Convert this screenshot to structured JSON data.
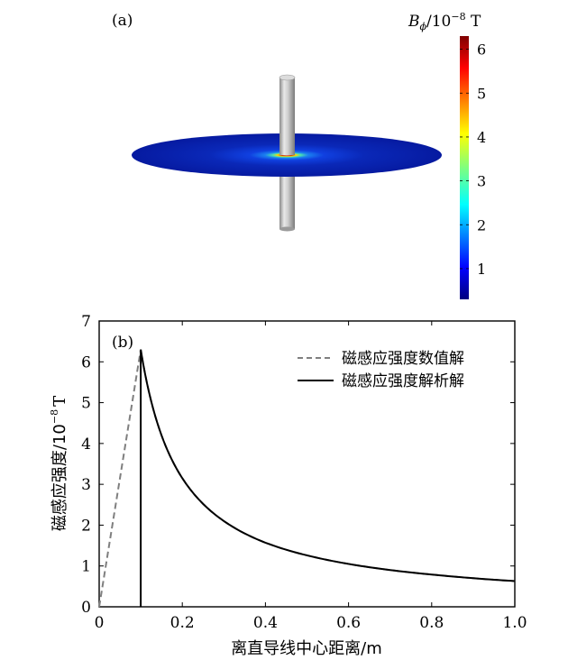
{
  "panel_a": {
    "label": "(a)",
    "colorbar": {
      "title_var": "B",
      "title_sub": "ϕ",
      "title_unit_base": "/10",
      "title_unit_exp": "−8",
      "title_unit": " T",
      "ticks": [
        "1",
        "2",
        "3",
        "4",
        "5",
        "6"
      ],
      "range": [
        0.3,
        6.3
      ],
      "colormap": "jet"
    },
    "colors": {
      "disk_dark": "#0a1fa0",
      "wire_gray": "#b9b9b9"
    }
  },
  "chart_data": {
    "type": "line",
    "label": "(b)",
    "xlabel": "离直导线中心距离/m",
    "ylabel_text": "磁感应强度/10",
    "ylabel_exp": "−8",
    "ylabel_unit": "T",
    "xlim": [
      0,
      1.0
    ],
    "ylim": [
      0,
      7
    ],
    "xticks": [
      "0",
      "0.2",
      "0.4",
      "0.6",
      "0.8",
      "1.0"
    ],
    "yticks": [
      "0",
      "1",
      "2",
      "3",
      "4",
      "5",
      "6",
      "7"
    ],
    "legend_position": "top-right",
    "series": [
      {
        "name": "磁感应强度数值解",
        "style": "dashed",
        "color": "#7f7f7f",
        "x": [
          0,
          0.1,
          0.15,
          0.2,
          0.3,
          0.4,
          0.5,
          0.6,
          0.7,
          0.8,
          0.9,
          1.0
        ],
        "y": [
          0,
          6.3,
          4.2,
          3.15,
          2.1,
          1.57,
          1.26,
          1.05,
          0.9,
          0.79,
          0.7,
          0.63
        ]
      },
      {
        "name": "磁感应强度解析解",
        "style": "solid",
        "color": "#000000",
        "x": [
          0.1,
          0.1,
          0.1,
          0.15,
          0.2,
          0.3,
          0.4,
          0.5,
          0.6,
          0.7,
          0.8,
          0.9,
          1.0
        ],
        "y": [
          0,
          1.7,
          6.3,
          4.2,
          3.15,
          2.1,
          1.57,
          1.26,
          1.05,
          0.9,
          0.79,
          0.7,
          0.63
        ]
      }
    ]
  }
}
